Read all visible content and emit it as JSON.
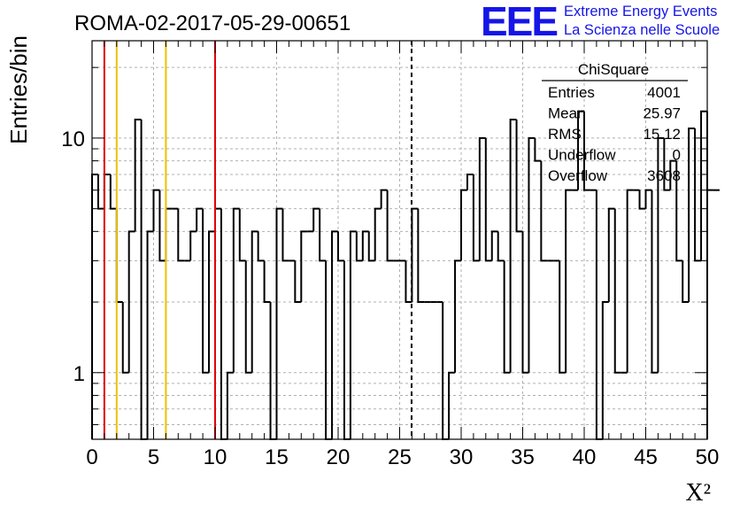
{
  "chart_data": {
    "type": "bar",
    "title": "ROMA-02-2017-05-29-00651",
    "xlabel": "X²",
    "ylabel": "Entries/bin",
    "xlim": [
      0,
      50
    ],
    "ylim": [
      0.52,
      26
    ],
    "yscale": "log",
    "grid": true,
    "bin_width": 0.5,
    "xticks": [
      0,
      5,
      10,
      15,
      20,
      25,
      30,
      35,
      40,
      45,
      50
    ],
    "yticks": [
      1,
      10
    ],
    "values": [
      7,
      5,
      7,
      5,
      2,
      1,
      4,
      12,
      0.3,
      4,
      6,
      3,
      5,
      5,
      3,
      3,
      4,
      5,
      1,
      4,
      5,
      0.3,
      1,
      5,
      3,
      1,
      4,
      3,
      2,
      0.3,
      5,
      3,
      3,
      2,
      4,
      4,
      5,
      3,
      0.3,
      4,
      3,
      0.3,
      4,
      3,
      4,
      3,
      5,
      6,
      3,
      3,
      3,
      2,
      5,
      2,
      2,
      2,
      2,
      0.3,
      1,
      3,
      6,
      7,
      3,
      10,
      3,
      4,
      3,
      1,
      12,
      4,
      1,
      10,
      8,
      3,
      3,
      3,
      1,
      6,
      6,
      13,
      6,
      6,
      0.3,
      2,
      5,
      1,
      1,
      6,
      6,
      5,
      6,
      1,
      10,
      6,
      8,
      3,
      2,
      11,
      3,
      13,
      6,
      6
    ],
    "vlines": [
      {
        "x": 1,
        "color": "#e00000"
      },
      {
        "x": 2,
        "color": "#f0c000"
      },
      {
        "x": 6,
        "color": "#f0c000"
      },
      {
        "x": 10,
        "color": "#e00000"
      },
      {
        "x": 25.97,
        "color": "#000000",
        "style": "dashed"
      }
    ],
    "stats_box": {
      "title": "ChiSquare",
      "rows": [
        {
          "label": "Entries",
          "value": "4001"
        },
        {
          "label": "Mean",
          "value": "25.97"
        },
        {
          "label": "RMS",
          "value": "15.12"
        },
        {
          "label": "Underflow",
          "value": "0"
        },
        {
          "label": "Overflow",
          "value": "3608"
        }
      ]
    },
    "colors": {
      "line": "#000000",
      "grid": "#b0b0b0",
      "logo": "#1515e8"
    }
  },
  "logo": {
    "mark": "EEE",
    "line1": "Extreme Energy Events",
    "line2": "La Scienza nelle Scuole"
  }
}
